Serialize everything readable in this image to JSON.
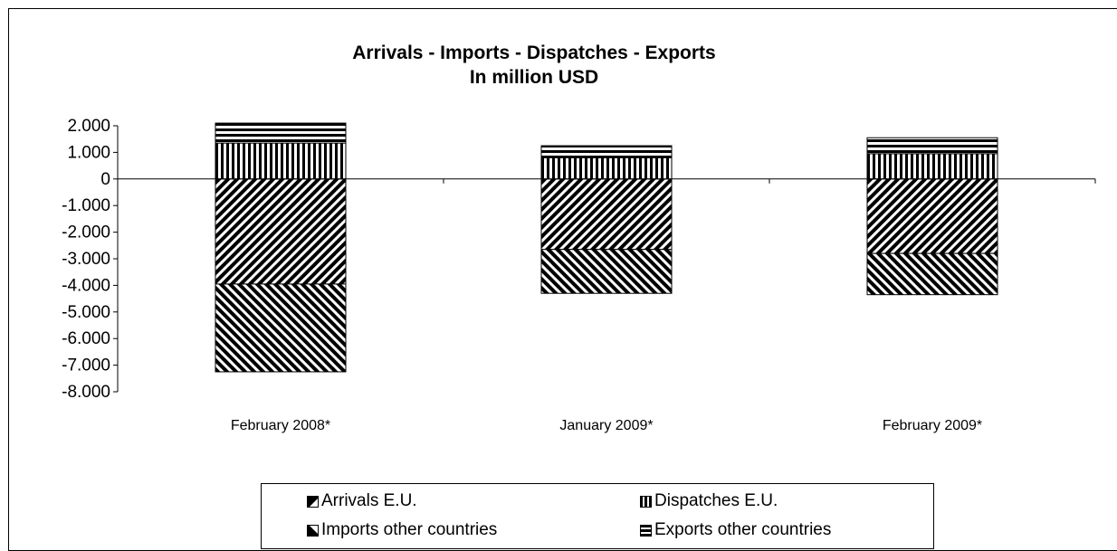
{
  "chart_data": {
    "type": "bar",
    "stacked": true,
    "title": "Arrivals - Imports - Dispatches - Exports",
    "subtitle": "In million USD",
    "categories": [
      "February 2008*",
      "January 2009*",
      "February 2009*"
    ],
    "series": [
      {
        "name": "Arrivals E.U.",
        "values": [
          -3950,
          -2650,
          -2800
        ],
        "pattern": "diag-up",
        "color": "#000000"
      },
      {
        "name": "Imports other countries",
        "values": [
          -3300,
          -1650,
          -1550
        ],
        "pattern": "diag-down",
        "color": "#000000"
      },
      {
        "name": "Dispatches E.U.",
        "values": [
          1350,
          800,
          950
        ],
        "pattern": "vertical",
        "color": "#000000"
      },
      {
        "name": "Exports other countries",
        "values": [
          750,
          450,
          600
        ],
        "pattern": "horizontal",
        "color": "#000000"
      }
    ],
    "ylim": [
      -8000,
      2000
    ],
    "yticks": [
      2000,
      1000,
      0,
      -1000,
      -2000,
      -3000,
      -4000,
      -5000,
      -6000,
      -7000,
      -8000
    ],
    "ytick_labels": [
      "2.000",
      "1.000",
      "0",
      "-1.000",
      "-2.000",
      "-3.000",
      "-4.000",
      "-5.000",
      "-6.000",
      "-7.000",
      "-8.000"
    ],
    "xlabel": "",
    "ylabel": "",
    "grid": false,
    "legend_position": "bottom"
  },
  "legend": {
    "items": [
      {
        "label": "Arrivals E.U.",
        "icon": "diag-up-icon"
      },
      {
        "label": "Dispatches E.U.",
        "icon": "vertical-stripes-icon"
      },
      {
        "label": "Imports other countries",
        "icon": "diag-down-icon"
      },
      {
        "label": "Exports other countries",
        "icon": "horizontal-stripes-icon"
      }
    ]
  }
}
